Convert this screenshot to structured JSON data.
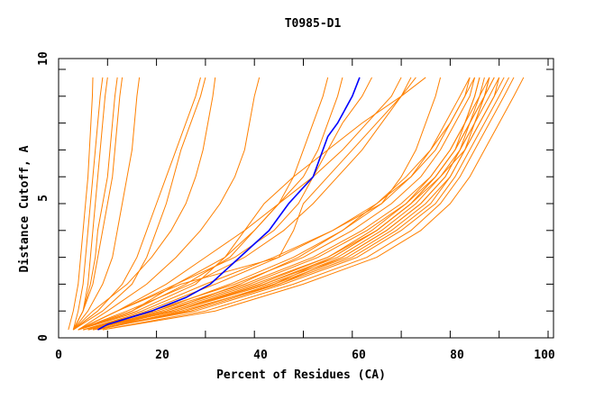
{
  "chart_data": {
    "type": "line",
    "title": "T0985-D1",
    "xlabel": "Percent of Residues (CA)",
    "ylabel": "Distance Cutoff, A",
    "xlim": [
      0,
      100
    ],
    "ylim": [
      0,
      10
    ],
    "x_tick_labels": [
      "0",
      "20",
      "40",
      "60",
      "80",
      "100"
    ],
    "y_tick_labels": [
      "0",
      "5",
      "10"
    ],
    "grid": false,
    "colors": {
      "models": "#ff8000",
      "highlight": "#0000ff"
    },
    "cutoffs": [
      0.3,
      1,
      2,
      3,
      4,
      5,
      6,
      7,
      8,
      9,
      9.7
    ],
    "highlight_series": {
      "name": "highlighted model",
      "points": [
        [
          8,
          0.3
        ],
        [
          10,
          0.5
        ],
        [
          19,
          1
        ],
        [
          26,
          1.5
        ],
        [
          31,
          2
        ],
        [
          37,
          3
        ],
        [
          43,
          4
        ],
        [
          45,
          4.5
        ],
        [
          47,
          5
        ],
        [
          52,
          6
        ],
        [
          54,
          7
        ],
        [
          55,
          7.5
        ],
        [
          57,
          8
        ],
        [
          60,
          9
        ],
        [
          61.5,
          9.7
        ]
      ]
    },
    "series": [
      [
        2,
        3,
        4,
        4.5,
        5,
        5.5,
        6,
        6.3,
        6.6,
        6.9,
        7
      ],
      [
        3,
        4,
        5,
        5.5,
        6,
        6.5,
        7,
        7.5,
        8,
        8.5,
        9
      ],
      [
        3,
        5,
        6,
        6.5,
        7,
        7.5,
        8,
        8.5,
        9,
        9.5,
        10
      ],
      [
        3,
        5,
        6.5,
        7.5,
        8,
        9,
        10,
        10.5,
        11,
        11.5,
        12
      ],
      [
        3,
        5,
        7,
        8,
        9,
        10,
        11,
        11.5,
        12,
        12.5,
        13
      ],
      [
        3,
        6,
        9,
        11,
        12,
        13,
        14,
        15,
        15.5,
        16,
        16.5
      ],
      [
        3,
        8,
        13,
        16,
        18,
        20,
        22,
        24,
        26,
        28,
        29
      ],
      [
        3,
        9,
        15,
        18,
        20,
        22,
        23.5,
        25,
        27,
        29,
        30
      ],
      [
        3,
        7,
        14,
        19,
        23,
        26,
        28,
        29.5,
        30.5,
        31.5,
        32
      ],
      [
        4,
        10,
        18,
        24,
        29,
        33,
        36,
        38,
        39,
        40,
        41
      ],
      [
        4,
        12,
        22,
        30,
        38,
        45,
        50,
        53,
        55,
        57,
        58
      ],
      [
        4,
        15,
        26,
        35,
        40,
        45,
        48,
        50,
        52,
        54,
        55
      ],
      [
        4,
        12,
        24,
        36,
        44,
        49,
        52,
        55,
        58,
        62,
        64
      ],
      [
        4,
        14,
        27,
        38,
        46,
        52,
        57,
        62,
        66,
        70,
        72
      ],
      [
        4,
        16,
        28,
        34,
        38,
        42,
        48,
        55,
        62,
        70,
        75
      ],
      [
        4,
        12,
        25,
        45,
        48,
        50,
        55,
        60,
        65,
        70,
        73
      ],
      [
        4,
        15,
        24,
        34,
        40,
        45,
        52,
        58,
        63,
        68,
        70
      ],
      [
        5,
        18,
        32,
        45,
        56,
        66,
        70,
        73,
        75,
        77,
        78
      ],
      [
        5,
        20,
        35,
        48,
        58,
        66,
        72,
        76,
        79,
        82,
        84
      ],
      [
        5,
        20,
        38,
        52,
        62,
        70,
        76,
        80,
        83,
        86,
        88
      ],
      [
        6,
        22,
        40,
        55,
        64,
        71,
        77,
        81,
        84,
        87,
        89
      ],
      [
        6,
        24,
        42,
        57,
        66,
        73,
        78,
        82,
        85,
        88,
        90
      ],
      [
        7,
        26,
        44,
        59,
        68,
        75,
        80,
        83,
        86,
        89,
        91
      ],
      [
        7,
        28,
        46,
        61,
        70,
        77,
        81,
        84,
        87,
        90,
        92
      ],
      [
        8,
        25,
        45,
        58,
        67,
        74,
        79,
        82,
        84,
        86,
        87
      ],
      [
        8,
        23,
        41,
        55,
        65,
        72,
        77,
        81,
        83,
        85,
        86
      ],
      [
        9,
        30,
        48,
        63,
        72,
        78,
        82,
        85,
        88,
        91,
        93
      ],
      [
        9,
        32,
        50,
        65,
        74,
        80,
        84,
        87,
        90,
        93,
        95
      ],
      [
        6,
        21,
        39,
        53,
        63,
        71,
        76,
        80,
        83,
        85,
        86
      ],
      [
        5,
        19,
        36,
        50,
        60,
        68,
        74,
        78,
        81,
        84,
        85
      ],
      [
        7,
        27,
        45,
        60,
        69,
        76,
        80,
        83,
        85,
        87,
        88
      ],
      [
        6,
        24,
        43,
        58,
        67,
        74,
        79,
        82,
        85,
        87,
        89
      ],
      [
        5,
        22,
        37,
        49,
        58,
        65,
        71,
        76,
        80,
        83,
        85
      ],
      [
        8,
        26,
        44,
        56,
        65,
        72,
        77,
        81,
        84,
        87,
        88
      ],
      [
        4,
        17,
        30,
        44,
        56,
        65,
        72,
        77,
        80,
        83,
        84
      ],
      [
        6,
        23,
        42,
        56,
        65,
        72,
        78,
        83,
        86,
        89,
        90
      ]
    ]
  }
}
